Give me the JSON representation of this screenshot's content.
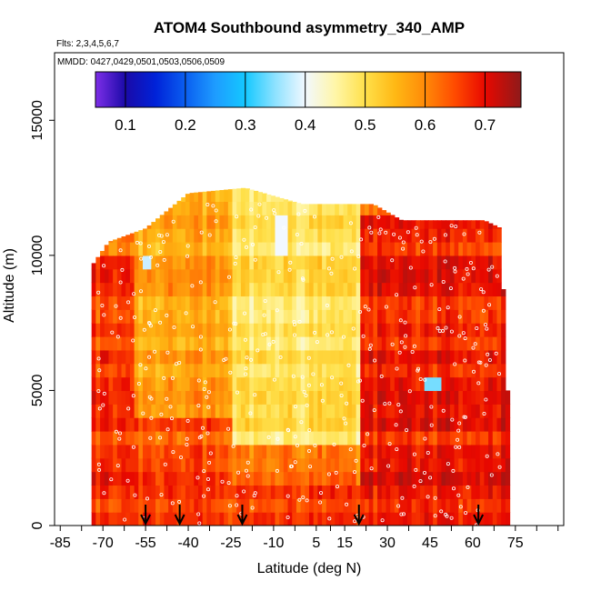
{
  "chart_data": {
    "type": "heatmap",
    "title": "ATOM4 Southbound asymmetry_340_AMP",
    "flights_note": "Flts: 2,3,4,5,6,7",
    "dates_note": "MMDD: 0427,0429,0501,0503,0506,0509",
    "xlabel": "Latitude (deg N)",
    "ylabel": "Altitude (m)",
    "xlim": [
      -87,
      92
    ],
    "ylim": [
      0,
      17500
    ],
    "x_ticks": [
      -85,
      -70,
      -55,
      -40,
      -25,
      -10,
      5,
      15,
      30,
      45,
      60,
      75
    ],
    "x_ticks_minor": [
      -77.5,
      -62.5,
      -47.5,
      -32.5,
      -17.5,
      -2.5,
      10,
      22.5,
      37.5,
      52.5,
      67.5,
      82.5,
      90
    ],
    "y_ticks": [
      0,
      5000,
      10000,
      15000
    ],
    "colorbar": {
      "ticks": [
        0.1,
        0.2,
        0.3,
        0.4,
        0.5,
        0.6,
        0.7
      ],
      "range": [
        0.05,
        0.76
      ],
      "stops": [
        {
          "v": 0.05,
          "c": "#7e2ee8"
        },
        {
          "v": 0.1,
          "c": "#1a0aa8"
        },
        {
          "v": 0.15,
          "c": "#0022d8"
        },
        {
          "v": 0.2,
          "c": "#0a5ef0"
        },
        {
          "v": 0.25,
          "c": "#1e9cff"
        },
        {
          "v": 0.3,
          "c": "#14c8ff"
        },
        {
          "v": 0.35,
          "c": "#8ee2ff"
        },
        {
          "v": 0.4,
          "c": "#f2f8ff"
        },
        {
          "v": 0.45,
          "c": "#fff6a8"
        },
        {
          "v": 0.5,
          "c": "#ffe04a"
        },
        {
          "v": 0.55,
          "c": "#ffb814"
        },
        {
          "v": 0.6,
          "c": "#ff8a08"
        },
        {
          "v": 0.65,
          "c": "#ff4a00"
        },
        {
          "v": 0.7,
          "c": "#e80800"
        },
        {
          "v": 0.76,
          "c": "#8e1a1a"
        }
      ]
    },
    "profile_arrows_lat": [
      -55,
      -43,
      -21,
      20,
      62
    ],
    "coverage": {
      "lat_min": -74,
      "lat_max": 72,
      "alt_max_profile": [
        {
          "lat": -74,
          "alt": 9600
        },
        {
          "lat": -68,
          "alt": 10500
        },
        {
          "lat": -55,
          "alt": 11000
        },
        {
          "lat": -40,
          "alt": 12300
        },
        {
          "lat": -20,
          "alt": 12500
        },
        {
          "lat": 0,
          "alt": 11900
        },
        {
          "lat": 25,
          "alt": 11900
        },
        {
          "lat": 35,
          "alt": 11300
        },
        {
          "lat": 64,
          "alt": 11300
        },
        {
          "lat": 70,
          "alt": 11000
        },
        {
          "lat": 72,
          "alt": 5000
        }
      ]
    },
    "data_summary": [
      {
        "lat_range": [
          -74,
          -60
        ],
        "alt_range": [
          0,
          10000
        ],
        "approx_value": 0.66
      },
      {
        "lat_range": [
          -60,
          -25
        ],
        "alt_range": [
          0,
          4000
        ],
        "approx_value": 0.64
      },
      {
        "lat_range": [
          -60,
          -25
        ],
        "alt_range": [
          4000,
          12500
        ],
        "approx_value": 0.57
      },
      {
        "lat_range": [
          -25,
          20
        ],
        "alt_range": [
          0,
          3000
        ],
        "approx_value": 0.6
      },
      {
        "lat_range": [
          -25,
          20
        ],
        "alt_range": [
          3000,
          12500
        ],
        "approx_value": 0.49
      },
      {
        "lat_range": [
          20,
          72
        ],
        "alt_range": [
          0,
          11300
        ],
        "approx_value": 0.68
      },
      {
        "lat_range": [
          -10,
          -6
        ],
        "alt_range": [
          10000,
          11500
        ],
        "approx_value": 0.4
      },
      {
        "lat_range": [
          42,
          48
        ],
        "alt_range": [
          4800,
          5200
        ],
        "approx_value": 0.34
      },
      {
        "lat_range": [
          -57,
          -53
        ],
        "alt_range": [
          9200,
          9700
        ],
        "approx_value": 0.38
      }
    ]
  }
}
